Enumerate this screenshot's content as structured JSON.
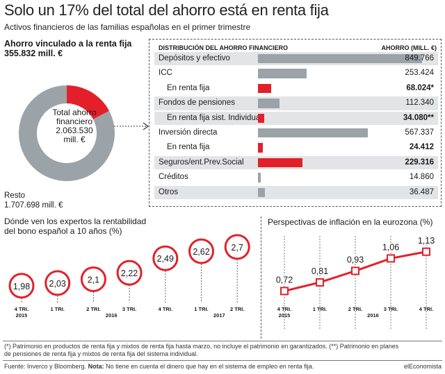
{
  "header": {
    "title": "Solo un 17% del total del ahorro está en renta fija",
    "subtitle": "Activos financieros de las familias españolas en el primer trimestre"
  },
  "donut": {
    "fixed_label": "Ahorro vinculado a la renta fija",
    "fixed_value": "355.832 mill. €",
    "center_line1": "Total ahorro",
    "center_line2": "financiero",
    "center_line3": "2.063.530",
    "center_line4": "mill. €",
    "rest_label": "Resto",
    "rest_value": "1.707.698 mill. €"
  },
  "table": {
    "col_left": "DISTRIBUCIÓN DEL AHORRO FINANCIERO",
    "col_right": "AHORRO (MILL. €)"
  },
  "mid_titles": {
    "bond_title_1": "Dónde ven los expertos la rentabilidad",
    "bond_title_2": "del bono español a 10 años (%)",
    "inflation_title": "Perspectivas de inflación en la eurozona (%)"
  },
  "footnotes": {
    "note_1": "(*) Patrimonio en productos de renta fija y mixtos de renta fija hasta marzo, no incluye el patrimonio en  garantizados. (**) Patrimonio en planes",
    "note_2": "de pensiones de renta fija y mixtos de renta fija del sistema individual.",
    "source": "Fuente: Inverco y Bloomberg.",
    "note_label": "Nota:",
    "note_text": "No tiene en cuenta el dinero que hay en el sistema de empleo en renta fija.",
    "brand": "elEconomista"
  },
  "colors": {
    "red": "#e3202a",
    "gray": "#9ba3a9",
    "row_shade": "#e2e4e6"
  },
  "chart_data": [
    {
      "type": "pie",
      "title": "",
      "slices": [
        {
          "name": "Ahorro vinculado a la renta fija",
          "value": 355832
        },
        {
          "name": "Resto",
          "value": 1707698
        }
      ],
      "total": 2063530
    },
    {
      "type": "bar",
      "title": "",
      "xlabel": "DISTRIBUCIÓN DEL AHORRO FINANCIERO",
      "ylabel": "AHORRO (MILL. €)",
      "rows": [
        {
          "label": "Depósitos y efectivo",
          "value": 849766,
          "display": "849.766",
          "indent": false,
          "red": false,
          "bold": false,
          "shade": true
        },
        {
          "label": "ICC",
          "value": 253424,
          "display": "253.424",
          "indent": false,
          "red": false,
          "bold": false,
          "shade": false
        },
        {
          "label": "En renta fija",
          "value": 68024,
          "display": "68.024*",
          "indent": true,
          "red": true,
          "bold": true,
          "shade": false
        },
        {
          "label": "Fondos de pensiones",
          "value": 112340,
          "display": "112.340",
          "indent": false,
          "red": false,
          "bold": false,
          "shade": true
        },
        {
          "label": "En renta fija sist. Individual",
          "value": 34080,
          "display": "34.080**",
          "indent": true,
          "red": true,
          "bold": true,
          "shade": true
        },
        {
          "label": "Inversión directa",
          "value": 567337,
          "display": "567.337",
          "indent": false,
          "red": false,
          "bold": false,
          "shade": false
        },
        {
          "label": "En renta fija",
          "value": 24412,
          "display": "24.412",
          "indent": true,
          "red": true,
          "bold": true,
          "shade": false
        },
        {
          "label": "Seguros/ent.Prev.Social",
          "value": 229316,
          "display": "229.316",
          "indent": false,
          "red": true,
          "bold": true,
          "shade": true
        },
        {
          "label": "Créditos",
          "value": 14860,
          "display": "14.860",
          "indent": false,
          "red": false,
          "bold": false,
          "shade": false
        },
        {
          "label": "Otros",
          "value": 36487,
          "display": "36.487",
          "indent": false,
          "red": false,
          "bold": false,
          "shade": true
        }
      ]
    },
    {
      "type": "scatter",
      "title": "Dónde ven los expertos la rentabilidad del bono español a 10 años (%)",
      "categories": [
        "4 TRI.",
        "1 TRI.",
        "2 TRI.",
        "3 TRI.",
        "4 TRI.",
        "1 TRI.",
        "2 TRI."
      ],
      "years": [
        {
          "label": "2015",
          "index": 0
        },
        {
          "label": "2016",
          "index": 2.5
        },
        {
          "label": "2017",
          "index": 5.5
        }
      ],
      "values": [
        1.98,
        2.03,
        2.1,
        2.22,
        2.49,
        2.62,
        2.7
      ],
      "labels": [
        "1,98",
        "2,03",
        "2,1",
        "2,22",
        "2,49",
        "2,62",
        "2,7"
      ],
      "ylim": [
        1.9,
        2.75
      ]
    },
    {
      "type": "line",
      "title": "Perspectivas de inflación en la eurozona (%)",
      "categories": [
        "4 TRI.",
        "1 TRI.",
        "2 TRI.",
        "3 TRI.",
        "4 TRI."
      ],
      "years": [
        {
          "label": "2015",
          "index": 0
        },
        {
          "label": "2016",
          "index": 2.5
        }
      ],
      "values": [
        0.72,
        0.81,
        0.93,
        1.06,
        1.13
      ],
      "labels": [
        "0,72",
        "0,81",
        "0,93",
        "1,06",
        "1,13"
      ],
      "ylim": [
        0.6,
        1.15
      ],
      "grid": true
    }
  ]
}
